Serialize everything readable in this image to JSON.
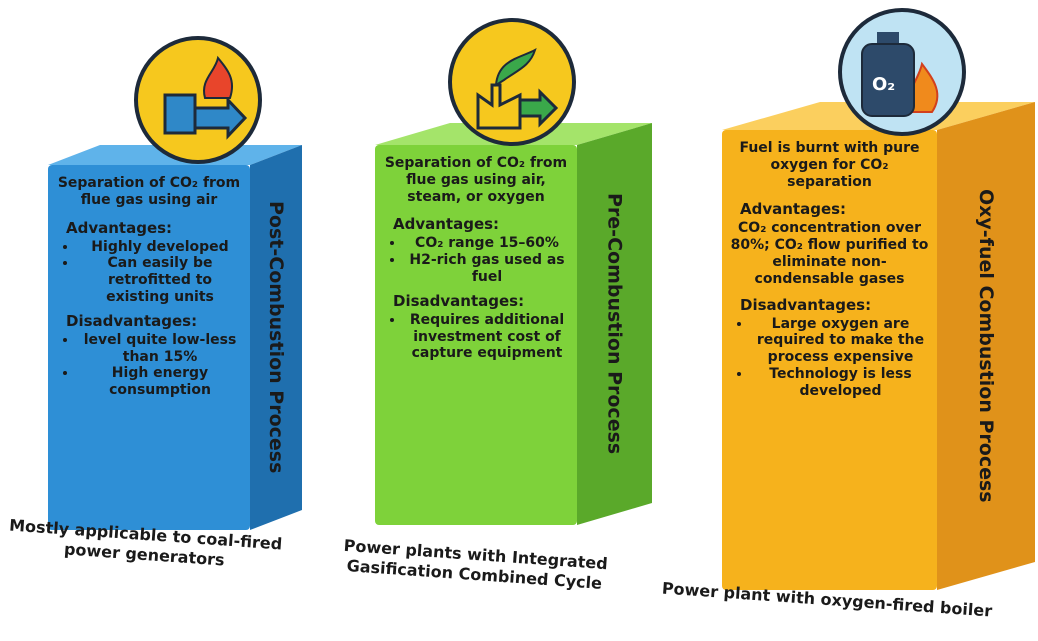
{
  "columns": [
    {
      "title": "Post-Combustion Process",
      "description": "Separation of CO₂ from flue gas using air",
      "advantages_heading": "Advantages:",
      "advantages": [
        "Highly developed",
        "Can easily be retrofitted to existing units"
      ],
      "disadvantages_heading": "Disadvantages:",
      "disadvantages": [
        "level quite low-less than 15%",
        "High energy consumption"
      ],
      "application": "Mostly applicable to coal-fired power generators"
    },
    {
      "title": "Pre-Combustion Process",
      "description": "Separation of CO₂ from flue gas using air, steam, or oxygen",
      "advantages_heading": "Advantages:",
      "advantages": [
        "CO₂ range 15–60%",
        "H2-rich gas used as fuel"
      ],
      "disadvantages_heading": "Disadvantages:",
      "disadvantages": [
        "Requires additional investment cost of capture equipment"
      ],
      "application": "Power plants with Integrated Gasification Combined Cycle"
    },
    {
      "title": "Oxy-fuel Combustion Process",
      "description": "Fuel is burnt with pure oxygen for CO₂ separation",
      "advantages_heading": "Advantages:",
      "advantages": "CO₂ concentration over 80%; CO₂ flow purified to eliminate non-condensable gases",
      "disadvantages_heading": "Disadvantages:",
      "disadvantages": [
        "Large oxygen are required to make the process expensive",
        "Technology is less developed"
      ],
      "application": "Power plant with oxygen-fired boiler",
      "icon_label": "O₂"
    }
  ]
}
